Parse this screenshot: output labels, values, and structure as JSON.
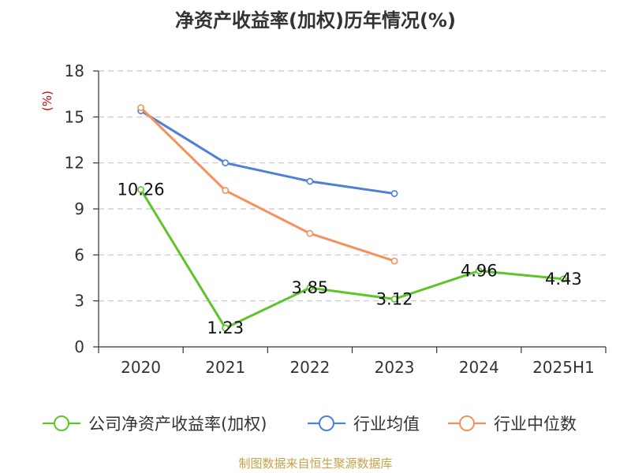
{
  "chart_data": {
    "type": "line",
    "title": "净资产收益率(加权)历年情况(%)",
    "ylabel": "(%)",
    "xlabel": "",
    "categories": [
      "2020",
      "2021",
      "2022",
      "2023",
      "2024",
      "2025H1"
    ],
    "ylim": [
      0,
      18
    ],
    "yticks": [
      0,
      3,
      6,
      9,
      12,
      15,
      18
    ],
    "grid": true,
    "legend_position": "bottom",
    "series": [
      {
        "name": "公司净资产收益率(加权)",
        "color": "#5cc52a",
        "values": [
          10.26,
          1.23,
          3.85,
          3.12,
          4.96,
          4.43
        ],
        "labels": [
          "10.26",
          "1.23",
          "3.85",
          "3.12",
          "4.96",
          "4.43"
        ]
      },
      {
        "name": "行业均值",
        "color": "#4f7fd8",
        "values": [
          15.4,
          12.0,
          10.8,
          10.0,
          null,
          null
        ]
      },
      {
        "name": "行业中位数",
        "color": "#f5915a",
        "values": [
          15.6,
          10.2,
          7.4,
          5.6,
          null,
          null
        ]
      }
    ]
  },
  "footer": {
    "credit": "制图数据来自恒生聚源数据库"
  }
}
